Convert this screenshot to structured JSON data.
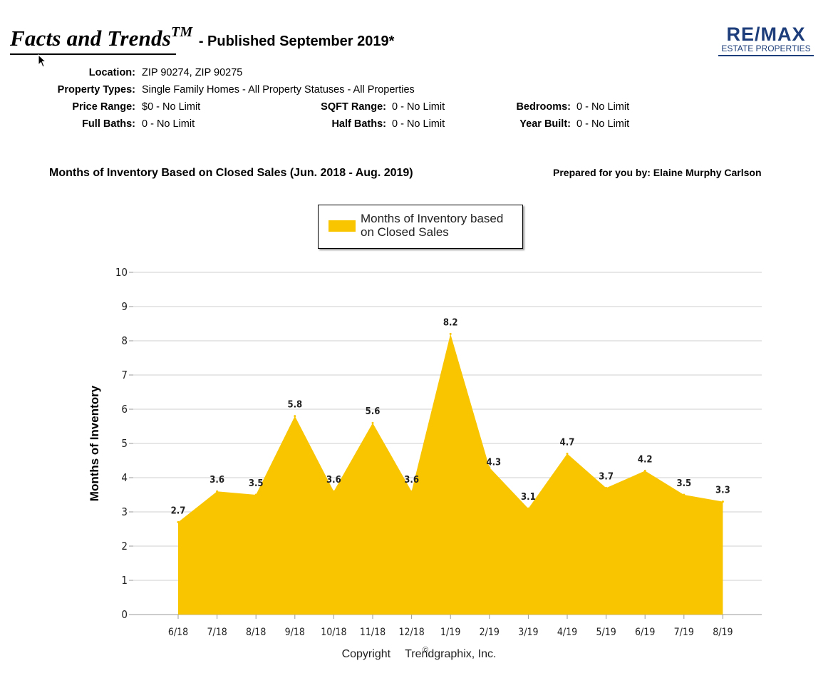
{
  "header": {
    "brand": "Facts and Trends",
    "brand_tm": "TM",
    "published": "- Published September 2019*"
  },
  "logo": {
    "main": "RE/MAX",
    "sub": "ESTATE PROPERTIES",
    "color": "#1d3e7a"
  },
  "criteria": {
    "location_label": "Location:",
    "location_value": "ZIP 90274, ZIP 90275",
    "property_types_label": "Property Types:",
    "property_types_value": "Single Family Homes - All Property Statuses - All Properties",
    "price_range_label": "Price Range:",
    "price_range_value": "$0 - No Limit",
    "sqft_range_label": "SQFT Range:",
    "sqft_range_value": "0 - No Limit",
    "bedrooms_label": "Bedrooms:",
    "bedrooms_value": "0 - No Limit",
    "full_baths_label": "Full Baths:",
    "full_baths_value": "0 - No Limit",
    "half_baths_label": "Half Baths:",
    "half_baths_value": "0 - No Limit",
    "year_built_label": "Year Built:",
    "year_built_value": "0 - No Limit"
  },
  "chart_title": "Months of Inventory Based on Closed Sales (Jun. 2018 - Aug. 2019)",
  "prepared_by": "Prepared for you by: Elaine Murphy Carlson",
  "footer": {
    "copyright_prefix": "Copyright",
    "copyright_symbol": "©",
    "copyright_suffix": "Trendgraphix, Inc."
  },
  "chart_data": {
    "type": "area",
    "categories": [
      "6/18",
      "7/18",
      "8/18",
      "9/18",
      "10/18",
      "11/18",
      "12/18",
      "1/19",
      "2/19",
      "3/19",
      "4/19",
      "5/19",
      "6/19",
      "7/19",
      "8/19"
    ],
    "series": [
      {
        "name": "Months of Inventory based on Closed Sales",
        "values": [
          2.7,
          3.6,
          3.5,
          5.8,
          3.6,
          5.6,
          3.6,
          8.2,
          4.3,
          3.1,
          4.7,
          3.7,
          4.2,
          3.5,
          3.3
        ],
        "color": "#f8c500"
      }
    ],
    "data_labels": [
      "2.7",
      "3.6",
      "3.5",
      "5.8",
      "3.6",
      "5.6",
      "3.6",
      "8.2",
      "4.3",
      "3.1",
      "4.7",
      "3.7",
      "4.2",
      "3.5",
      "3.3"
    ],
    "ylabel": "Months of Inventory",
    "xlabel": "",
    "ylim": [
      0,
      10
    ],
    "yticks": [
      0,
      1,
      2,
      3,
      4,
      5,
      6,
      7,
      8,
      9,
      10
    ],
    "grid": true,
    "legend_position": "top-center"
  }
}
